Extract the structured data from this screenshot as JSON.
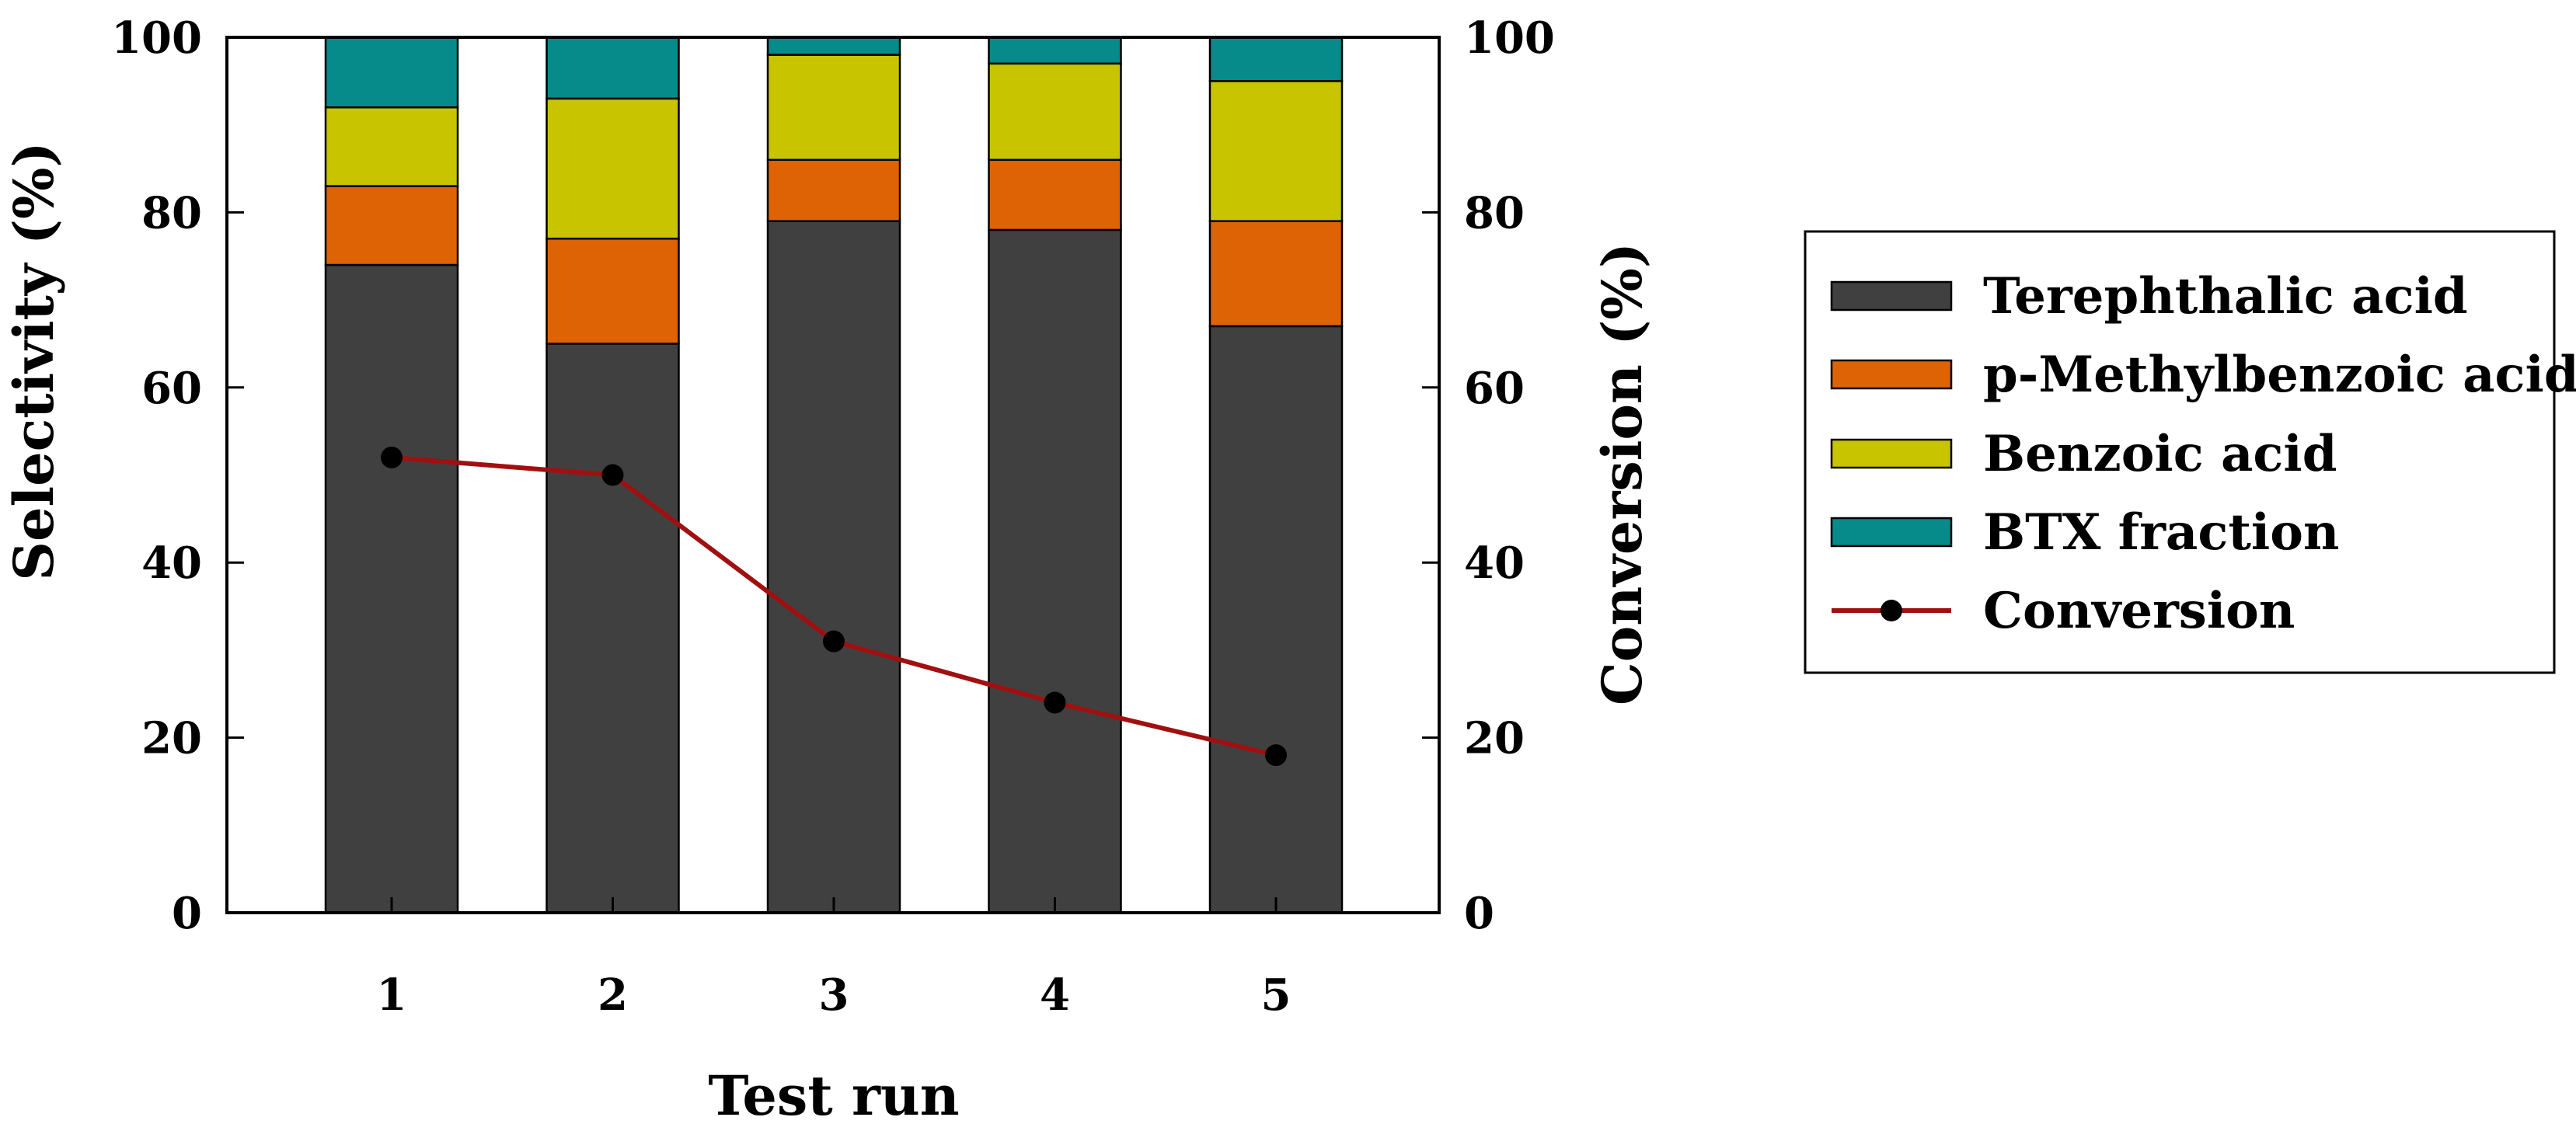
{
  "chart_data": {
    "type": "bar",
    "stacked": true,
    "categories": [
      "1",
      "2",
      "3",
      "4",
      "5"
    ],
    "series": [
      {
        "name": "Terephthalic acid",
        "color": "#404040",
        "values": [
          74,
          65,
          79,
          78,
          67
        ]
      },
      {
        "name": "p-Methylbenzoic acid",
        "color": "#dd6305",
        "values": [
          9,
          12,
          7,
          8,
          12
        ]
      },
      {
        "name": "Benzoic acid",
        "color": "#c8c400",
        "values": [
          9,
          16,
          12,
          11,
          16
        ]
      },
      {
        "name": "BTX fraction",
        "color": "#078a8a",
        "values": [
          8,
          7,
          2,
          3,
          5
        ]
      }
    ],
    "line_series": {
      "name": "Conversion",
      "color": "#a01010",
      "marker_color": "#000000",
      "axis": "right",
      "values": [
        52,
        50,
        31,
        24,
        18
      ]
    },
    "xlabel": "Test run",
    "ylabel": "Selectivity (%)",
    "y2label": "Conversion (%)",
    "ylim": [
      0,
      100
    ],
    "y2lim": [
      0,
      100
    ],
    "yticks": [
      "0",
      "20",
      "40",
      "60",
      "80",
      "100"
    ],
    "y2ticks": [
      "0",
      "20",
      "40",
      "60",
      "80",
      "100"
    ],
    "legend_position": "right",
    "grid": false
  }
}
